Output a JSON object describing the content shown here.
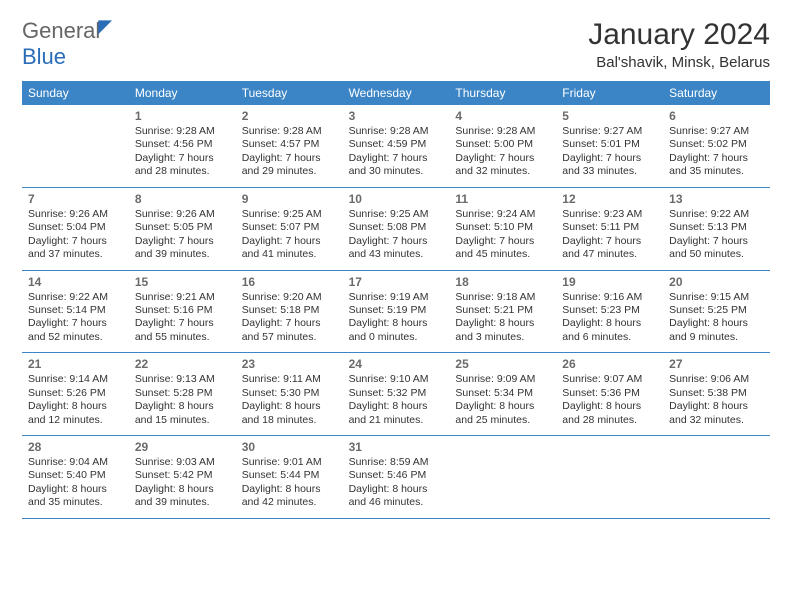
{
  "logo": {
    "gen": "General",
    "blue": "Blue"
  },
  "title": "January 2024",
  "location": "Bal'shavik, Minsk, Belarus",
  "header_color": "#3b85c6",
  "weekdays": [
    "Sunday",
    "Monday",
    "Tuesday",
    "Wednesday",
    "Thursday",
    "Friday",
    "Saturday"
  ],
  "weeks": [
    [
      null,
      {
        "n": "1",
        "sr": "Sunrise: 9:28 AM",
        "ss": "Sunset: 4:56 PM",
        "d1": "Daylight: 7 hours",
        "d2": "and 28 minutes."
      },
      {
        "n": "2",
        "sr": "Sunrise: 9:28 AM",
        "ss": "Sunset: 4:57 PM",
        "d1": "Daylight: 7 hours",
        "d2": "and 29 minutes."
      },
      {
        "n": "3",
        "sr": "Sunrise: 9:28 AM",
        "ss": "Sunset: 4:59 PM",
        "d1": "Daylight: 7 hours",
        "d2": "and 30 minutes."
      },
      {
        "n": "4",
        "sr": "Sunrise: 9:28 AM",
        "ss": "Sunset: 5:00 PM",
        "d1": "Daylight: 7 hours",
        "d2": "and 32 minutes."
      },
      {
        "n": "5",
        "sr": "Sunrise: 9:27 AM",
        "ss": "Sunset: 5:01 PM",
        "d1": "Daylight: 7 hours",
        "d2": "and 33 minutes."
      },
      {
        "n": "6",
        "sr": "Sunrise: 9:27 AM",
        "ss": "Sunset: 5:02 PM",
        "d1": "Daylight: 7 hours",
        "d2": "and 35 minutes."
      }
    ],
    [
      {
        "n": "7",
        "sr": "Sunrise: 9:26 AM",
        "ss": "Sunset: 5:04 PM",
        "d1": "Daylight: 7 hours",
        "d2": "and 37 minutes."
      },
      {
        "n": "8",
        "sr": "Sunrise: 9:26 AM",
        "ss": "Sunset: 5:05 PM",
        "d1": "Daylight: 7 hours",
        "d2": "and 39 minutes."
      },
      {
        "n": "9",
        "sr": "Sunrise: 9:25 AM",
        "ss": "Sunset: 5:07 PM",
        "d1": "Daylight: 7 hours",
        "d2": "and 41 minutes."
      },
      {
        "n": "10",
        "sr": "Sunrise: 9:25 AM",
        "ss": "Sunset: 5:08 PM",
        "d1": "Daylight: 7 hours",
        "d2": "and 43 minutes."
      },
      {
        "n": "11",
        "sr": "Sunrise: 9:24 AM",
        "ss": "Sunset: 5:10 PM",
        "d1": "Daylight: 7 hours",
        "d2": "and 45 minutes."
      },
      {
        "n": "12",
        "sr": "Sunrise: 9:23 AM",
        "ss": "Sunset: 5:11 PM",
        "d1": "Daylight: 7 hours",
        "d2": "and 47 minutes."
      },
      {
        "n": "13",
        "sr": "Sunrise: 9:22 AM",
        "ss": "Sunset: 5:13 PM",
        "d1": "Daylight: 7 hours",
        "d2": "and 50 minutes."
      }
    ],
    [
      {
        "n": "14",
        "sr": "Sunrise: 9:22 AM",
        "ss": "Sunset: 5:14 PM",
        "d1": "Daylight: 7 hours",
        "d2": "and 52 minutes."
      },
      {
        "n": "15",
        "sr": "Sunrise: 9:21 AM",
        "ss": "Sunset: 5:16 PM",
        "d1": "Daylight: 7 hours",
        "d2": "and 55 minutes."
      },
      {
        "n": "16",
        "sr": "Sunrise: 9:20 AM",
        "ss": "Sunset: 5:18 PM",
        "d1": "Daylight: 7 hours",
        "d2": "and 57 minutes."
      },
      {
        "n": "17",
        "sr": "Sunrise: 9:19 AM",
        "ss": "Sunset: 5:19 PM",
        "d1": "Daylight: 8 hours",
        "d2": "and 0 minutes."
      },
      {
        "n": "18",
        "sr": "Sunrise: 9:18 AM",
        "ss": "Sunset: 5:21 PM",
        "d1": "Daylight: 8 hours",
        "d2": "and 3 minutes."
      },
      {
        "n": "19",
        "sr": "Sunrise: 9:16 AM",
        "ss": "Sunset: 5:23 PM",
        "d1": "Daylight: 8 hours",
        "d2": "and 6 minutes."
      },
      {
        "n": "20",
        "sr": "Sunrise: 9:15 AM",
        "ss": "Sunset: 5:25 PM",
        "d1": "Daylight: 8 hours",
        "d2": "and 9 minutes."
      }
    ],
    [
      {
        "n": "21",
        "sr": "Sunrise: 9:14 AM",
        "ss": "Sunset: 5:26 PM",
        "d1": "Daylight: 8 hours",
        "d2": "and 12 minutes."
      },
      {
        "n": "22",
        "sr": "Sunrise: 9:13 AM",
        "ss": "Sunset: 5:28 PM",
        "d1": "Daylight: 8 hours",
        "d2": "and 15 minutes."
      },
      {
        "n": "23",
        "sr": "Sunrise: 9:11 AM",
        "ss": "Sunset: 5:30 PM",
        "d1": "Daylight: 8 hours",
        "d2": "and 18 minutes."
      },
      {
        "n": "24",
        "sr": "Sunrise: 9:10 AM",
        "ss": "Sunset: 5:32 PM",
        "d1": "Daylight: 8 hours",
        "d2": "and 21 minutes."
      },
      {
        "n": "25",
        "sr": "Sunrise: 9:09 AM",
        "ss": "Sunset: 5:34 PM",
        "d1": "Daylight: 8 hours",
        "d2": "and 25 minutes."
      },
      {
        "n": "26",
        "sr": "Sunrise: 9:07 AM",
        "ss": "Sunset: 5:36 PM",
        "d1": "Daylight: 8 hours",
        "d2": "and 28 minutes."
      },
      {
        "n": "27",
        "sr": "Sunrise: 9:06 AM",
        "ss": "Sunset: 5:38 PM",
        "d1": "Daylight: 8 hours",
        "d2": "and 32 minutes."
      }
    ],
    [
      {
        "n": "28",
        "sr": "Sunrise: 9:04 AM",
        "ss": "Sunset: 5:40 PM",
        "d1": "Daylight: 8 hours",
        "d2": "and 35 minutes."
      },
      {
        "n": "29",
        "sr": "Sunrise: 9:03 AM",
        "ss": "Sunset: 5:42 PM",
        "d1": "Daylight: 8 hours",
        "d2": "and 39 minutes."
      },
      {
        "n": "30",
        "sr": "Sunrise: 9:01 AM",
        "ss": "Sunset: 5:44 PM",
        "d1": "Daylight: 8 hours",
        "d2": "and 42 minutes."
      },
      {
        "n": "31",
        "sr": "Sunrise: 8:59 AM",
        "ss": "Sunset: 5:46 PM",
        "d1": "Daylight: 8 hours",
        "d2": "and 46 minutes."
      },
      null,
      null,
      null
    ]
  ]
}
